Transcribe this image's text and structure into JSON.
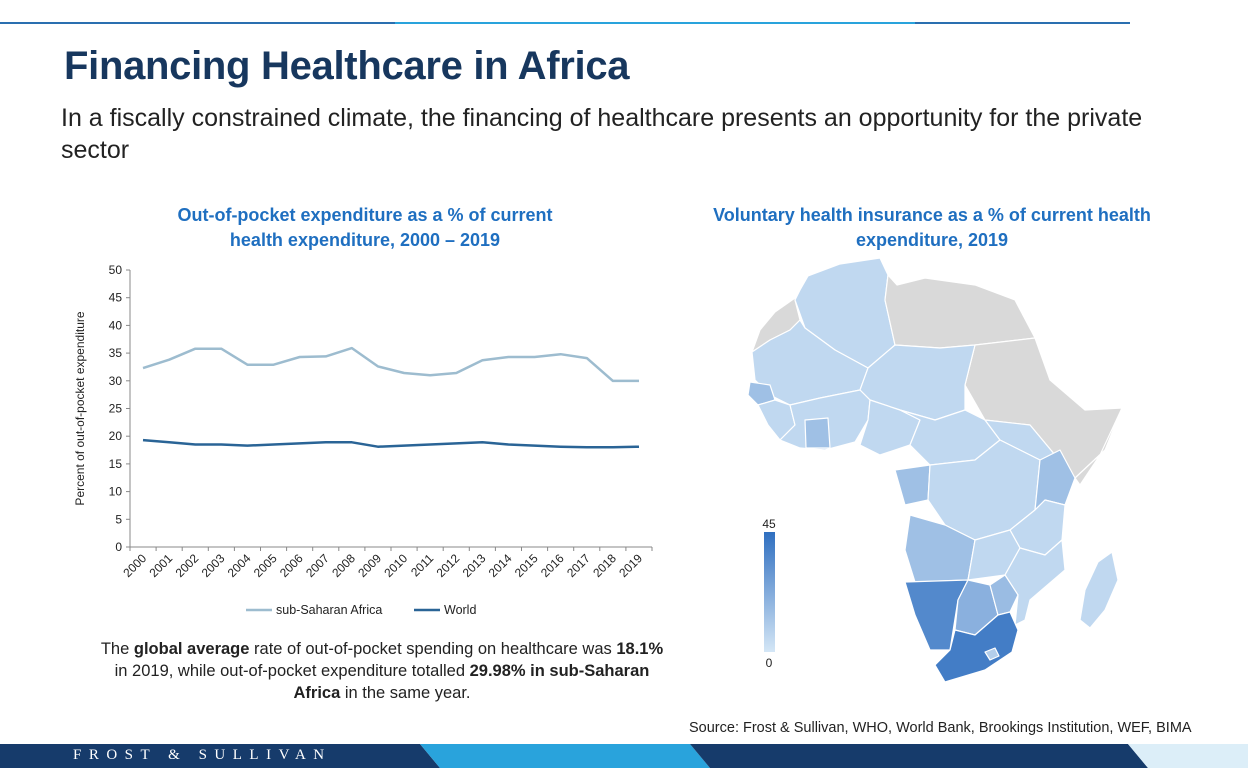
{
  "page": {
    "title": "Financing Healthcare in Africa",
    "subtitle": "In a fiscally constrained climate, the financing of healthcare presents an opportunity for the private sector",
    "brand": "FROST & SULLIVAN",
    "source": "Source: Frost & Sullivan, WHO, World Bank, Brookings Institution, WEF, BIMA",
    "colors": {
      "title": "#17375e",
      "chart_title": "#1f6fc0",
      "footer_dark": "#163b6b",
      "footer_light": "#29a3dc"
    }
  },
  "summary": {
    "t1": "The ",
    "b1": "global average",
    "t2": " rate of out-of-pocket spending on healthcare was ",
    "b2": "18.1%",
    "t3": " in 2019, while out-of-pocket expenditure totalled ",
    "b3": "29.98% in sub-Saharan Africa",
    "t4": " in the same year."
  },
  "chart_data": [
    {
      "type": "line",
      "title": "Out-of-pocket expenditure as a % of current health expenditure, 2000 – 2019",
      "title_lines": [
        "Out-of-pocket expenditure as a % of current",
        "health expenditure, 2000 – 2019"
      ],
      "xlabel": "",
      "ylabel": "Percent of out-of-pocket expenditure",
      "ylim": [
        0,
        50
      ],
      "yticks": [
        0,
        5,
        10,
        15,
        20,
        25,
        30,
        35,
        40,
        45,
        50
      ],
      "grid": false,
      "legend_position": "bottom",
      "categories": [
        "2000",
        "2001",
        "2002",
        "2003",
        "2004",
        "2005",
        "2006",
        "2007",
        "2008",
        "2009",
        "2010",
        "2011",
        "2012",
        "2013",
        "2014",
        "2015",
        "2016",
        "2017",
        "2018",
        "2019"
      ],
      "series": [
        {
          "name": "sub-Saharan Africa",
          "color": "#9dbccf",
          "values": [
            32.3,
            33.8,
            35.8,
            35.8,
            32.9,
            32.9,
            34.3,
            34.4,
            35.9,
            32.6,
            31.4,
            31.0,
            31.4,
            33.7,
            34.3,
            34.3,
            34.8,
            34.1,
            29.98,
            29.98
          ]
        },
        {
          "name": "World",
          "color": "#2a6496",
          "values": [
            19.3,
            18.9,
            18.5,
            18.5,
            18.3,
            18.5,
            18.7,
            18.9,
            18.9,
            18.1,
            18.3,
            18.5,
            18.7,
            18.9,
            18.5,
            18.3,
            18.1,
            18.0,
            18.0,
            18.1
          ]
        }
      ]
    },
    {
      "type": "heatmap",
      "subtype": "choropleth-map",
      "title": "Voluntary health insurance as a % of current health expenditure, 2019",
      "title_lines": [
        "Voluntary health insurance as a % of current health",
        "expenditure, 2019"
      ],
      "colorbar": {
        "min": 0,
        "max": 45,
        "min_label": "0",
        "max_label": "45",
        "low_color": "#d4e6f6",
        "high_color": "#2f6fc0"
      },
      "no_data_color": "#d9d9d9",
      "levels": {
        "default": 0.12,
        "namibia": 0.78,
        "south-africa": 0.88,
        "botswana": 0.45,
        "zimbabwe": 0.35,
        "kenya": 0.35,
        "gabon": 0.35,
        "angola": 0.3,
        "lesotho": 0.2
      }
    }
  ]
}
